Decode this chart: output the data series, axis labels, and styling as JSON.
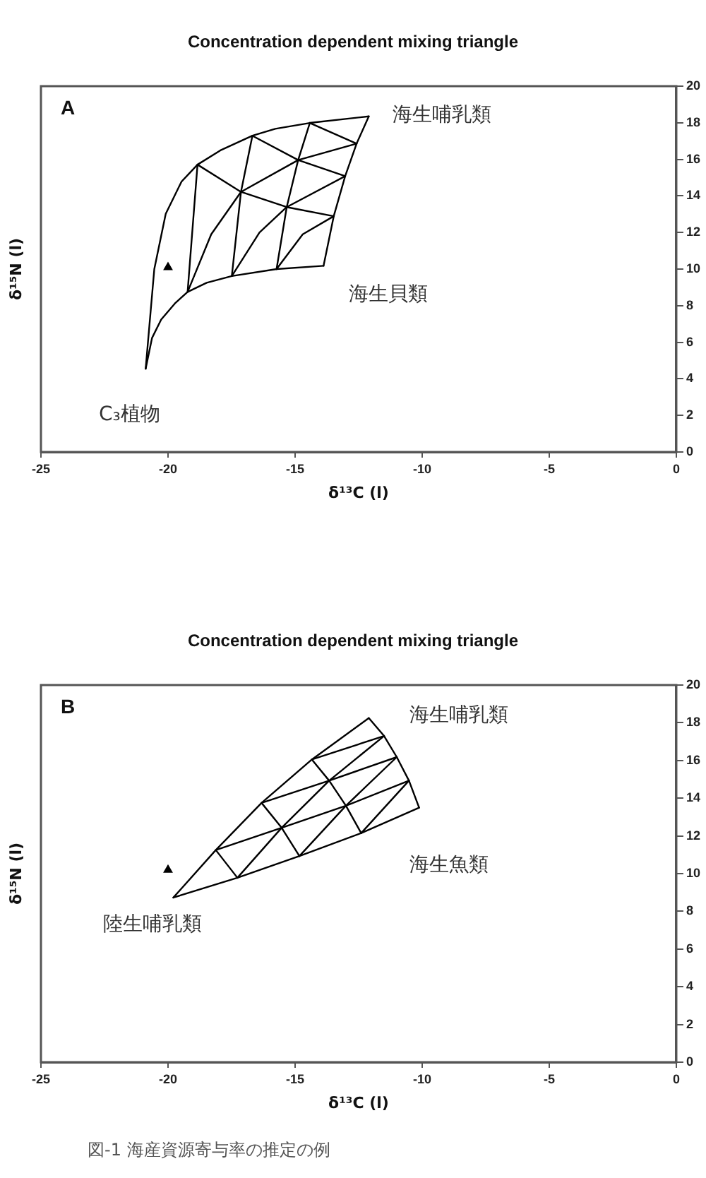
{
  "chart_data": [
    {
      "type": "line",
      "title": "Concentration dependent mixing triangle",
      "xlabel": "δ¹³C (l)",
      "ylabel": "δ¹⁵N (l)",
      "xlim": [
        -25,
        0
      ],
      "xticks": [
        -25,
        -20,
        -15,
        -10,
        -5,
        0
      ],
      "ylim": [
        0,
        20
      ],
      "yticks": [
        0,
        2,
        4,
        6,
        8,
        10,
        12,
        14,
        16,
        18,
        20
      ],
      "grid": false,
      "legend": false,
      "marker": "none",
      "annotations": [
        "A",
        "海生哺乳類",
        "海生貝類",
        "C₃植物"
      ],
      "series": [
        {
          "type": "line",
          "color": "#000000",
          "x": [
            -20.88,
            -20.54,
            -20.09,
            -19.47,
            -18.84,
            -17.94,
            -16.68,
            -15.78,
            -14.42,
            -12.1
          ],
          "values": [
            4.55,
            10.0,
            13.02,
            14.78,
            15.71,
            16.49,
            17.29,
            17.67,
            17.99,
            18.35
          ]
        },
        {
          "type": "line",
          "color": "#000000",
          "x": [
            -20.88,
            -20.63,
            -20.27,
            -19.73,
            -19.23,
            -18.48,
            -17.49,
            -15.73,
            -13.88
          ],
          "values": [
            4.55,
            6.23,
            7.24,
            8.12,
            8.75,
            9.25,
            9.62,
            10.0,
            10.18
          ]
        },
        {
          "type": "line",
          "color": "#000000",
          "x": [
            -13.88,
            -13.48,
            -13.03,
            -12.58,
            -12.1
          ],
          "values": [
            10.18,
            12.89,
            15.08,
            16.86,
            18.35
          ]
        },
        {
          "type": "line",
          "color": "#000000",
          "x": [
            -18.84,
            -19.23
          ],
          "values": [
            15.71,
            8.75
          ]
        },
        {
          "type": "line",
          "color": "#000000",
          "x": [
            -16.68,
            -17.13,
            -17.49
          ],
          "values": [
            17.29,
            14.22,
            9.62
          ]
        },
        {
          "type": "line",
          "color": "#000000",
          "x": [
            -14.42,
            -14.88,
            -15.33,
            -15.73
          ],
          "values": [
            17.99,
            15.96,
            13.39,
            10.0
          ]
        },
        {
          "type": "line",
          "color": "#000000",
          "x": [
            -19.23,
            -18.3,
            -17.13,
            -14.88,
            -12.58
          ],
          "values": [
            8.75,
            11.9,
            14.22,
            15.96,
            16.86
          ]
        },
        {
          "type": "line",
          "color": "#000000",
          "x": [
            -17.49,
            -16.4,
            -15.33,
            -13.03
          ],
          "values": [
            9.62,
            12.0,
            13.39,
            15.08
          ]
        },
        {
          "type": "line",
          "color": "#000000",
          "x": [
            -15.73,
            -14.7,
            -13.48
          ],
          "values": [
            10.0,
            11.9,
            12.89
          ]
        },
        {
          "type": "line",
          "color": "#000000",
          "x": [
            -18.84,
            -17.13,
            -15.33,
            -13.48
          ],
          "values": [
            15.71,
            14.22,
            13.39,
            12.89
          ]
        },
        {
          "type": "line",
          "color": "#000000",
          "x": [
            -16.68,
            -14.88,
            -13.03
          ],
          "values": [
            17.29,
            15.96,
            15.08
          ]
        },
        {
          "type": "line",
          "color": "#000000",
          "x": [
            -14.42,
            -12.58
          ],
          "values": [
            17.99,
            16.86
          ]
        },
        {
          "type": "scatter",
          "color": "#000000",
          "marker": "triangle",
          "x": [
            -20.0
          ],
          "values": [
            10.1
          ]
        }
      ]
    },
    {
      "type": "line",
      "title": "Concentration dependent mixing triangle",
      "xlabel": "δ¹³C (l)",
      "ylabel": "δ¹⁵N (l)",
      "xlim": [
        -25,
        0
      ],
      "xticks": [
        -25,
        -20,
        -15,
        -10,
        -5,
        0
      ],
      "ylim": [
        0,
        20
      ],
      "yticks": [
        0,
        2,
        4,
        6,
        8,
        10,
        12,
        14,
        16,
        18,
        20
      ],
      "grid": false,
      "legend": false,
      "marker": "none",
      "annotations": [
        "B",
        "海生哺乳類",
        "海生魚類",
        "陸生哺乳類",
        "図-1 海産資源寄与率の推定の例"
      ],
      "series": [
        {
          "type": "line",
          "color": "#000000",
          "x": [
            -19.79,
            -18.12,
            -16.32,
            -14.34,
            -12.1
          ],
          "values": [
            8.73,
            11.25,
            13.75,
            16.05,
            18.25
          ]
        },
        {
          "type": "line",
          "color": "#000000",
          "x": [
            -19.79,
            -17.27,
            -14.83,
            -12.4,
            -10.12
          ],
          "values": [
            8.73,
            9.78,
            10.93,
            12.15,
            13.5
          ]
        },
        {
          "type": "line",
          "color": "#000000",
          "x": [
            -12.1,
            -11.5,
            -11.0,
            -10.52,
            -10.12
          ],
          "values": [
            18.25,
            17.3,
            16.18,
            14.93,
            13.5
          ]
        },
        {
          "type": "line",
          "color": "#000000",
          "x": [
            -18.12,
            -17.27
          ],
          "values": [
            11.25,
            9.78
          ]
        },
        {
          "type": "line",
          "color": "#000000",
          "x": [
            -16.32,
            -15.53,
            -14.83
          ],
          "values": [
            13.75,
            12.43,
            10.93
          ]
        },
        {
          "type": "line",
          "color": "#000000",
          "x": [
            -14.34,
            -13.66,
            -13.0,
            -12.4
          ],
          "values": [
            16.05,
            14.93,
            13.6,
            12.15
          ]
        },
        {
          "type": "line",
          "color": "#000000",
          "x": [
            -18.12,
            -15.53,
            -13.0,
            -10.52
          ],
          "values": [
            11.25,
            12.43,
            13.6,
            14.93
          ]
        },
        {
          "type": "line",
          "color": "#000000",
          "x": [
            -16.32,
            -13.66,
            -11.0
          ],
          "values": [
            13.75,
            14.93,
            16.18
          ]
        },
        {
          "type": "line",
          "color": "#000000",
          "x": [
            -14.34,
            -11.5
          ],
          "values": [
            16.05,
            17.3
          ]
        },
        {
          "type": "line",
          "color": "#000000",
          "x": [
            -17.27,
            -15.53,
            -13.66,
            -11.5
          ],
          "values": [
            9.78,
            12.43,
            14.93,
            17.3
          ]
        },
        {
          "type": "line",
          "color": "#000000",
          "x": [
            -14.83,
            -13.0,
            -11.0
          ],
          "values": [
            10.93,
            13.6,
            16.18
          ]
        },
        {
          "type": "line",
          "color": "#000000",
          "x": [
            -12.4,
            -10.52
          ],
          "values": [
            12.15,
            14.93
          ]
        },
        {
          "type": "scatter",
          "color": "#000000",
          "marker": "triangle",
          "x": [
            -20.0
          ],
          "values": [
            10.2
          ]
        }
      ]
    }
  ]
}
